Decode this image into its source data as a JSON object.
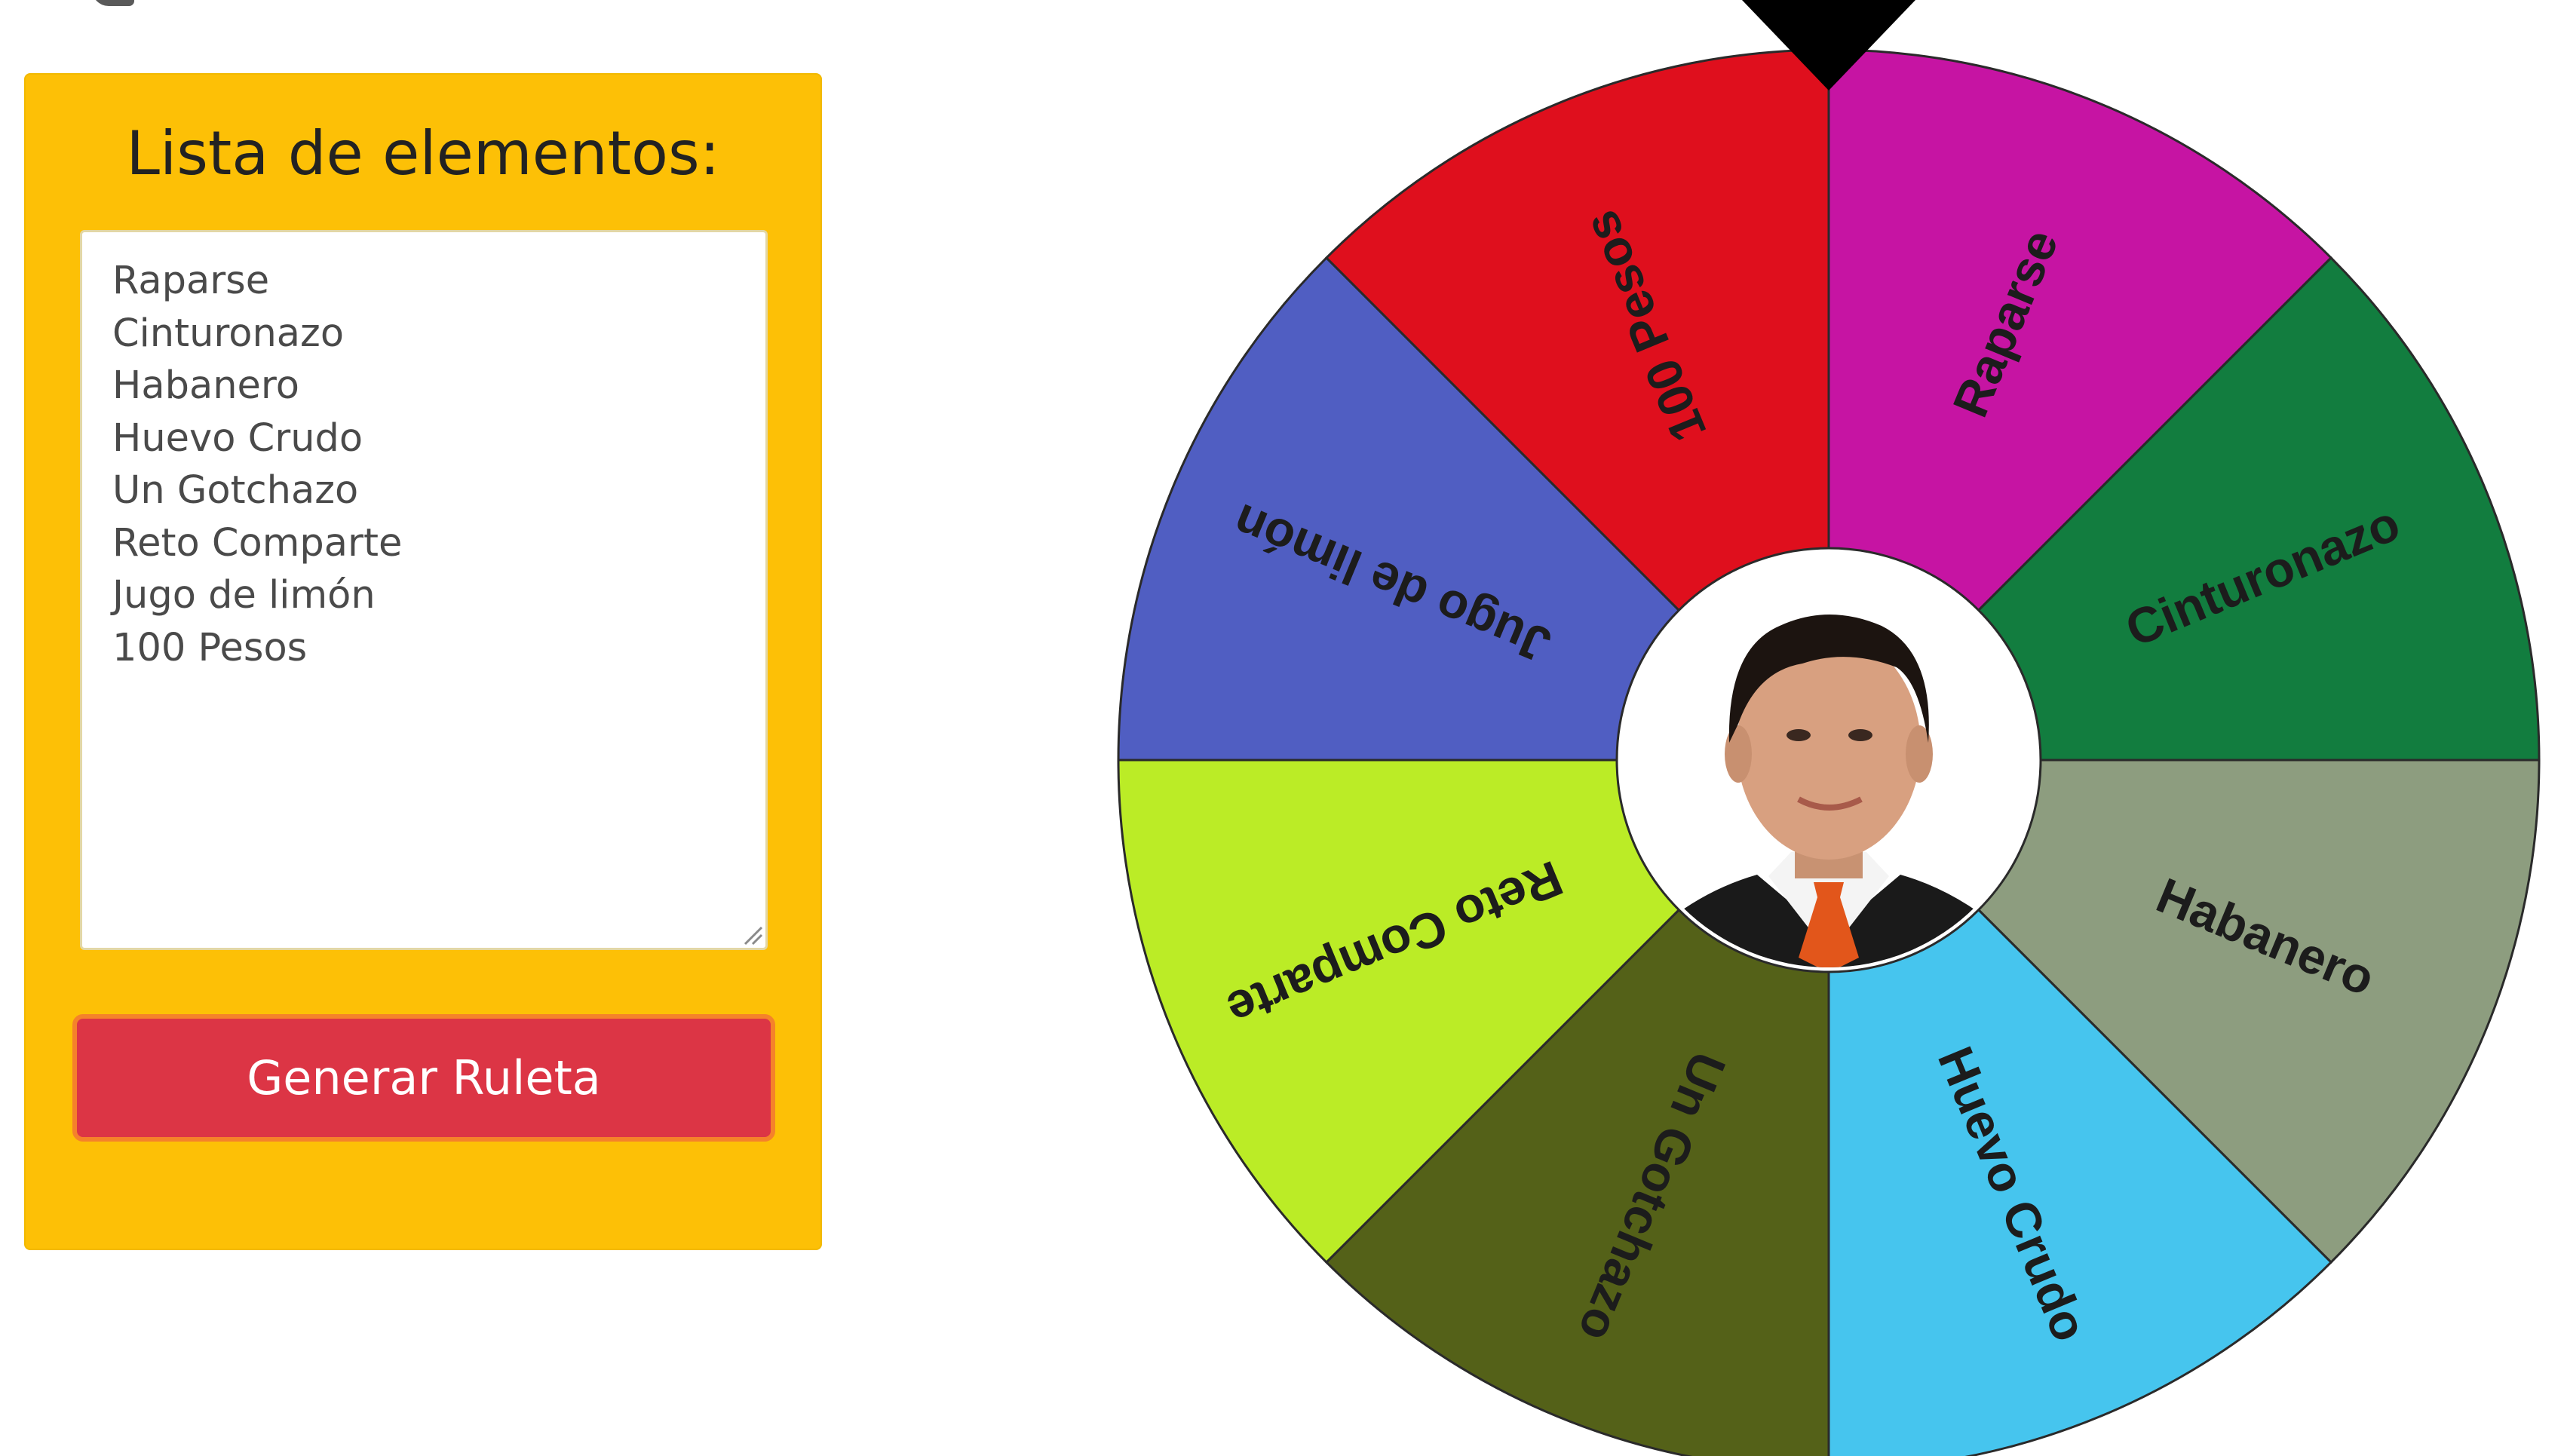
{
  "panel": {
    "title": "Lista de elementos:",
    "textarea_value": "Raparse\nCinturonazo\nHabanero\nHuevo Crudo\nUn Gotchazo\nReto Comparte\nJugo de limón\n100 Pesos",
    "button_label": "Generar Ruleta",
    "colors": {
      "panel_background": "#fdc006",
      "button_background": "#dc3545",
      "button_border": "#f5822a"
    }
  },
  "wheel": {
    "segments": [
      {
        "label": "Raparse",
        "color": "#c614a3"
      },
      {
        "label": "Cinturonazo",
        "color": "#127d3f"
      },
      {
        "label": "Habanero",
        "color": "#8d9d7f"
      },
      {
        "label": "Huevo Crudo",
        "color": "#46c5ee"
      },
      {
        "label": "Un Gotchazo",
        "color": "#546118"
      },
      {
        "label": "Reto Comparte",
        "color": "#bbec26"
      },
      {
        "label": "Jugo de limón",
        "color": "#505ec2"
      },
      {
        "label": "100 Pesos",
        "color": "#df0f1d"
      }
    ],
    "pointer_color": "#000000",
    "center_icon": "person-portrait-icon"
  }
}
